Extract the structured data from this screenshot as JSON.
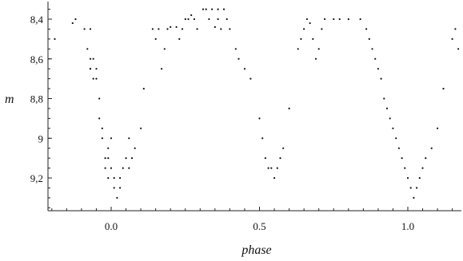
{
  "chart_data": {
    "type": "scatter",
    "title": "",
    "xlabel": "phase",
    "ylabel": "m",
    "xlim": [
      -0.2,
      1.18
    ],
    "ylim": [
      8.3,
      9.36
    ],
    "y_inverted": true,
    "grid": false,
    "x_ticks": [
      {
        "value": 0.0,
        "label": "0.0"
      },
      {
        "value": 0.5,
        "label": "0.5"
      },
      {
        "value": 1.0,
        "label": "1.0"
      }
    ],
    "y_ticks": [
      {
        "value": 8.4,
        "label": "8,4"
      },
      {
        "value": 8.6,
        "label": "8,6"
      },
      {
        "value": 8.8,
        "label": "8,8"
      },
      {
        "value": 9.0,
        "label": "9"
      },
      {
        "value": 9.2,
        "label": "9,2"
      }
    ],
    "series": [
      {
        "x": [
          -0.19,
          -0.13,
          -0.12,
          -0.09,
          -0.08,
          -0.07,
          -0.07,
          -0.07,
          -0.06,
          -0.07,
          -0.06,
          -0.05,
          -0.05,
          -0.04,
          -0.04,
          -0.03,
          -0.03,
          -0.02,
          -0.02,
          -0.01,
          -0.01,
          -0.01,
          0.0,
          0.0,
          0.01,
          0.01,
          0.02,
          0.03,
          0.03,
          0.04,
          0.05,
          0.06,
          0.06,
          0.07,
          0.08,
          0.1,
          0.11,
          0.14,
          0.15,
          0.16,
          0.17,
          0.18,
          0.19,
          0.2,
          0.22,
          0.23,
          0.24,
          0.25,
          0.26,
          0.27,
          0.28,
          0.29,
          0.31,
          0.32,
          0.33,
          0.34,
          0.35,
          0.36,
          0.36,
          0.37,
          0.38,
          0.39,
          0.4,
          0.42,
          0.43,
          0.45,
          0.47,
          0.5,
          0.51,
          0.52,
          0.53,
          0.54,
          0.55,
          0.56,
          0.57,
          0.58,
          0.6,
          0.63,
          0.64,
          0.65,
          0.66,
          0.67,
          0.68,
          0.69,
          0.7,
          0.71,
          0.72,
          0.75,
          0.77,
          0.8,
          0.84,
          0.86,
          0.87,
          0.88,
          0.89,
          0.9,
          0.91,
          0.92,
          0.93,
          0.94,
          0.95,
          0.96,
          0.97,
          0.98,
          0.99,
          1.0,
          1.01,
          1.02,
          1.03,
          1.04,
          1.05,
          1.06,
          1.08,
          1.1,
          1.12,
          1.15,
          1.16,
          1.17
        ],
        "y": [
          8.5,
          8.42,
          8.4,
          8.45,
          8.55,
          8.45,
          8.6,
          8.65,
          8.7,
          8.65,
          8.6,
          8.65,
          8.7,
          8.8,
          8.9,
          8.95,
          9.0,
          9.1,
          9.15,
          9.1,
          9.05,
          9.2,
          9.0,
          9.15,
          9.2,
          9.25,
          9.3,
          9.25,
          9.2,
          9.15,
          9.1,
          9.0,
          9.15,
          9.1,
          9.05,
          8.95,
          8.75,
          8.45,
          8.5,
          8.45,
          8.65,
          8.55,
          8.45,
          8.44,
          8.44,
          8.5,
          8.45,
          8.4,
          8.4,
          8.38,
          8.4,
          8.45,
          8.35,
          8.35,
          8.4,
          8.35,
          8.44,
          8.35,
          8.4,
          8.45,
          8.35,
          8.4,
          8.45,
          8.55,
          8.6,
          8.65,
          8.7,
          8.9,
          9.0,
          9.1,
          9.15,
          9.15,
          9.2,
          9.15,
          9.1,
          9.05,
          8.85,
          8.55,
          8.5,
          8.45,
          8.4,
          8.42,
          8.5,
          8.6,
          8.55,
          8.45,
          8.4,
          8.4,
          8.4,
          8.4,
          8.4,
          8.45,
          8.5,
          8.55,
          8.6,
          8.65,
          8.7,
          8.8,
          8.85,
          8.9,
          8.95,
          9.0,
          9.05,
          9.1,
          9.15,
          9.2,
          9.25,
          9.3,
          9.25,
          9.2,
          9.15,
          9.1,
          9.05,
          8.95,
          8.75,
          8.5,
          8.45,
          8.55
        ]
      }
    ]
  }
}
